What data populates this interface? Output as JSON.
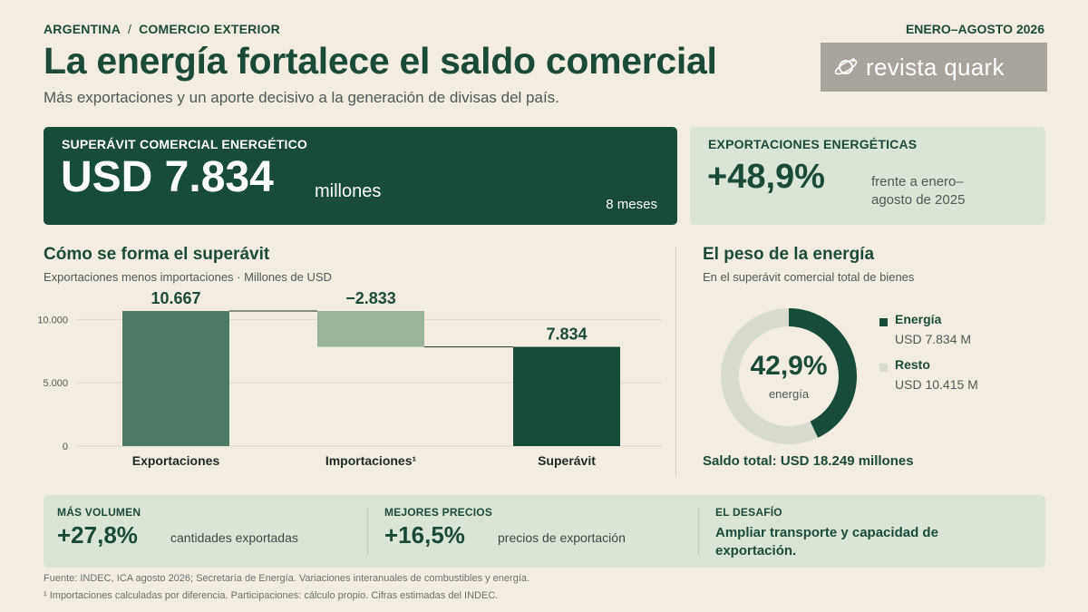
{
  "header": {
    "kicker_country": "ARGENTINA",
    "kicker_separator": "/",
    "kicker_topic": "COMERCIO EXTERIOR",
    "period": "ENERO–AGOSTO 2026",
    "title": "La energía fortalece el saldo comercial",
    "subtitle": "Más exportaciones y un aporte decisivo a la generación de divisas del país.",
    "logo_text": "revista quark",
    "logo_icon": "planet-icon"
  },
  "kpi_main": {
    "label": "SUPERÁVIT COMERCIAL ENERGÉTICO",
    "value": "USD 7.834",
    "unit": "millones",
    "note": "8 meses"
  },
  "kpi_exports": {
    "label": "EXPORTACIONES ENERGÉTICAS",
    "value": "+48,9%",
    "note": "frente a enero–agosto de 2025"
  },
  "waterfall": {
    "title": "Cómo se forma el superávit",
    "subtitle": "Exportaciones menos importaciones · Millones de USD"
  },
  "donut": {
    "title": "El peso de la energía",
    "subtitle": "En el superávit comercial total de bienes",
    "center_value": "42,9%",
    "center_label": "energía",
    "total_text": "Saldo total: USD 18.249 millones"
  },
  "chart_data": [
    {
      "type": "bar",
      "subtype": "waterfall",
      "categories": [
        "Exportaciones",
        "Importaciones¹",
        "Superávit"
      ],
      "values": [
        10667,
        -2833,
        7834
      ],
      "data_labels": [
        "10.667",
        "−2.833",
        "7.834"
      ],
      "y_ticks": [
        0,
        5000,
        10000
      ],
      "y_tick_labels": [
        "0",
        "5.000",
        "10.000"
      ],
      "ylim": [
        0,
        10667
      ],
      "grid": true,
      "colors": [
        "#4c7a64",
        "#9bb39b",
        "#174c3a"
      ]
    },
    {
      "type": "pie",
      "subtype": "donut",
      "series": [
        {
          "name": "Energía",
          "value": 7834,
          "value_label": "USD 7.834 M",
          "color": "#174c3a"
        },
        {
          "name": "Resto",
          "value": 10415,
          "value_label": "USD 10.415 M",
          "color": "#d7dccf"
        }
      ],
      "share_label": "42,9%",
      "legend_position": "right"
    }
  ],
  "bottom": {
    "volume": {
      "label": "MÁS VOLUMEN",
      "value": "+27,8%",
      "note": "cantidades exportadas"
    },
    "prices": {
      "label": "MEJORES PRECIOS",
      "value": "+16,5%",
      "note": "precios de exportación"
    },
    "challenge": {
      "label": "EL DESAFÍO",
      "text": "Ampliar transporte y capacidad de exportación."
    }
  },
  "footer": {
    "source": "Fuente: INDEC, ICA agosto 2026; Secretaría de Energía. Variaciones interanuales de combustibles y energía.",
    "footnote": "¹ Importaciones calculadas por diferencia. Participaciones: cálculo propio. Cifras estimadas del INDEC."
  }
}
